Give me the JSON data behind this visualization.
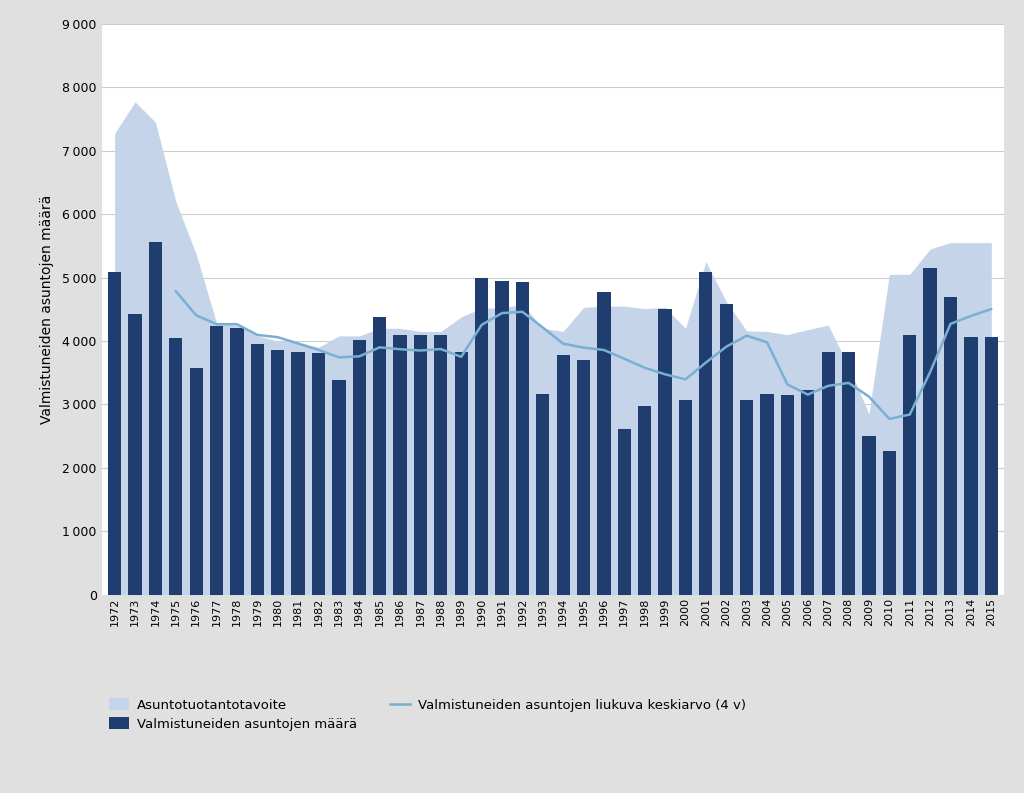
{
  "years": [
    1972,
    1973,
    1974,
    1975,
    1976,
    1977,
    1978,
    1979,
    1980,
    1981,
    1982,
    1983,
    1984,
    1985,
    1986,
    1987,
    1988,
    1989,
    1990,
    1991,
    1992,
    1993,
    1994,
    1995,
    1996,
    1997,
    1998,
    1999,
    2000,
    2001,
    2002,
    2003,
    2004,
    2005,
    2006,
    2007,
    2008,
    2009,
    2010,
    2011,
    2012,
    2013,
    2014,
    2015
  ],
  "bar_values": [
    5080,
    4430,
    5560,
    4050,
    3580,
    4230,
    4200,
    3950,
    3860,
    3820,
    3810,
    3380,
    4020,
    4380,
    4090,
    4100,
    4090,
    3820,
    5000,
    4950,
    4930,
    3170,
    3780,
    3700,
    4780,
    2620,
    2970,
    4510,
    3070,
    5090,
    4590,
    3070,
    3170,
    3150,
    3230,
    3820,
    3820,
    2500,
    2270,
    4100,
    5150,
    4700,
    4060,
    4060
  ],
  "target_values": [
    7270,
    7770,
    7450,
    6200,
    5370,
    4280,
    4250,
    4080,
    4000,
    3980,
    3900,
    4080,
    4080,
    4200,
    4200,
    4150,
    4150,
    4380,
    4520,
    4520,
    4580,
    4200,
    4150,
    4530,
    4550,
    4550,
    4510,
    4530,
    4200,
    5250,
    4620,
    4160,
    4150,
    4100,
    4180,
    4250,
    3600,
    2850,
    5050,
    5050,
    5450,
    5550,
    5550,
    5550
  ],
  "moving_avg": [
    null,
    null,
    null,
    4785,
    4405,
    4265,
    4265,
    4095,
    4060,
    3960,
    3860,
    3742,
    3758,
    3900,
    3870,
    3850,
    3873,
    3750,
    4253,
    4440,
    4460,
    4213,
    3958,
    3895,
    3858,
    3720,
    3578,
    3475,
    3395,
    3660,
    3910,
    4083,
    3980,
    3315,
    3155,
    3293,
    3340,
    3123,
    2773,
    2840,
    3510,
    4270,
    4395,
    4503
  ],
  "bar_color": "#1f3d6e",
  "target_color": "#c5d4e8",
  "line_color": "#7aafd4",
  "ylabel": "Valmistuneiden asuntojen määrä",
  "ylim_max": 9000,
  "ytick_values": [
    0,
    1000,
    2000,
    3000,
    4000,
    5000,
    6000,
    7000,
    8000,
    9000
  ],
  "bg_color": "#ffffff",
  "outer_bg": "#e8e8e8",
  "grid_color": "#cccccc",
  "legend_target": "Asuntotuotantotavoite",
  "legend_bar": "Valmistuneiden asuntojen määrä",
  "legend_line": "Valmistuneiden asuntojen liukuva keskiarvo (4 v)"
}
